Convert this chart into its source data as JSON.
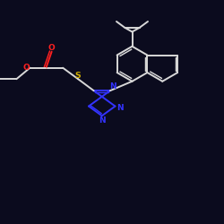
{
  "background": "#0b0b1e",
  "bond_color": "#d8d8d8",
  "atom_S_color": "#ccaa00",
  "atom_N_color": "#3333ff",
  "atom_O_color": "#ff2020",
  "bond_width": 1.4,
  "figsize": [
    2.5,
    2.5
  ],
  "dpi": 100,
  "xlim": [
    0,
    10
  ],
  "ylim": [
    0,
    10
  ]
}
